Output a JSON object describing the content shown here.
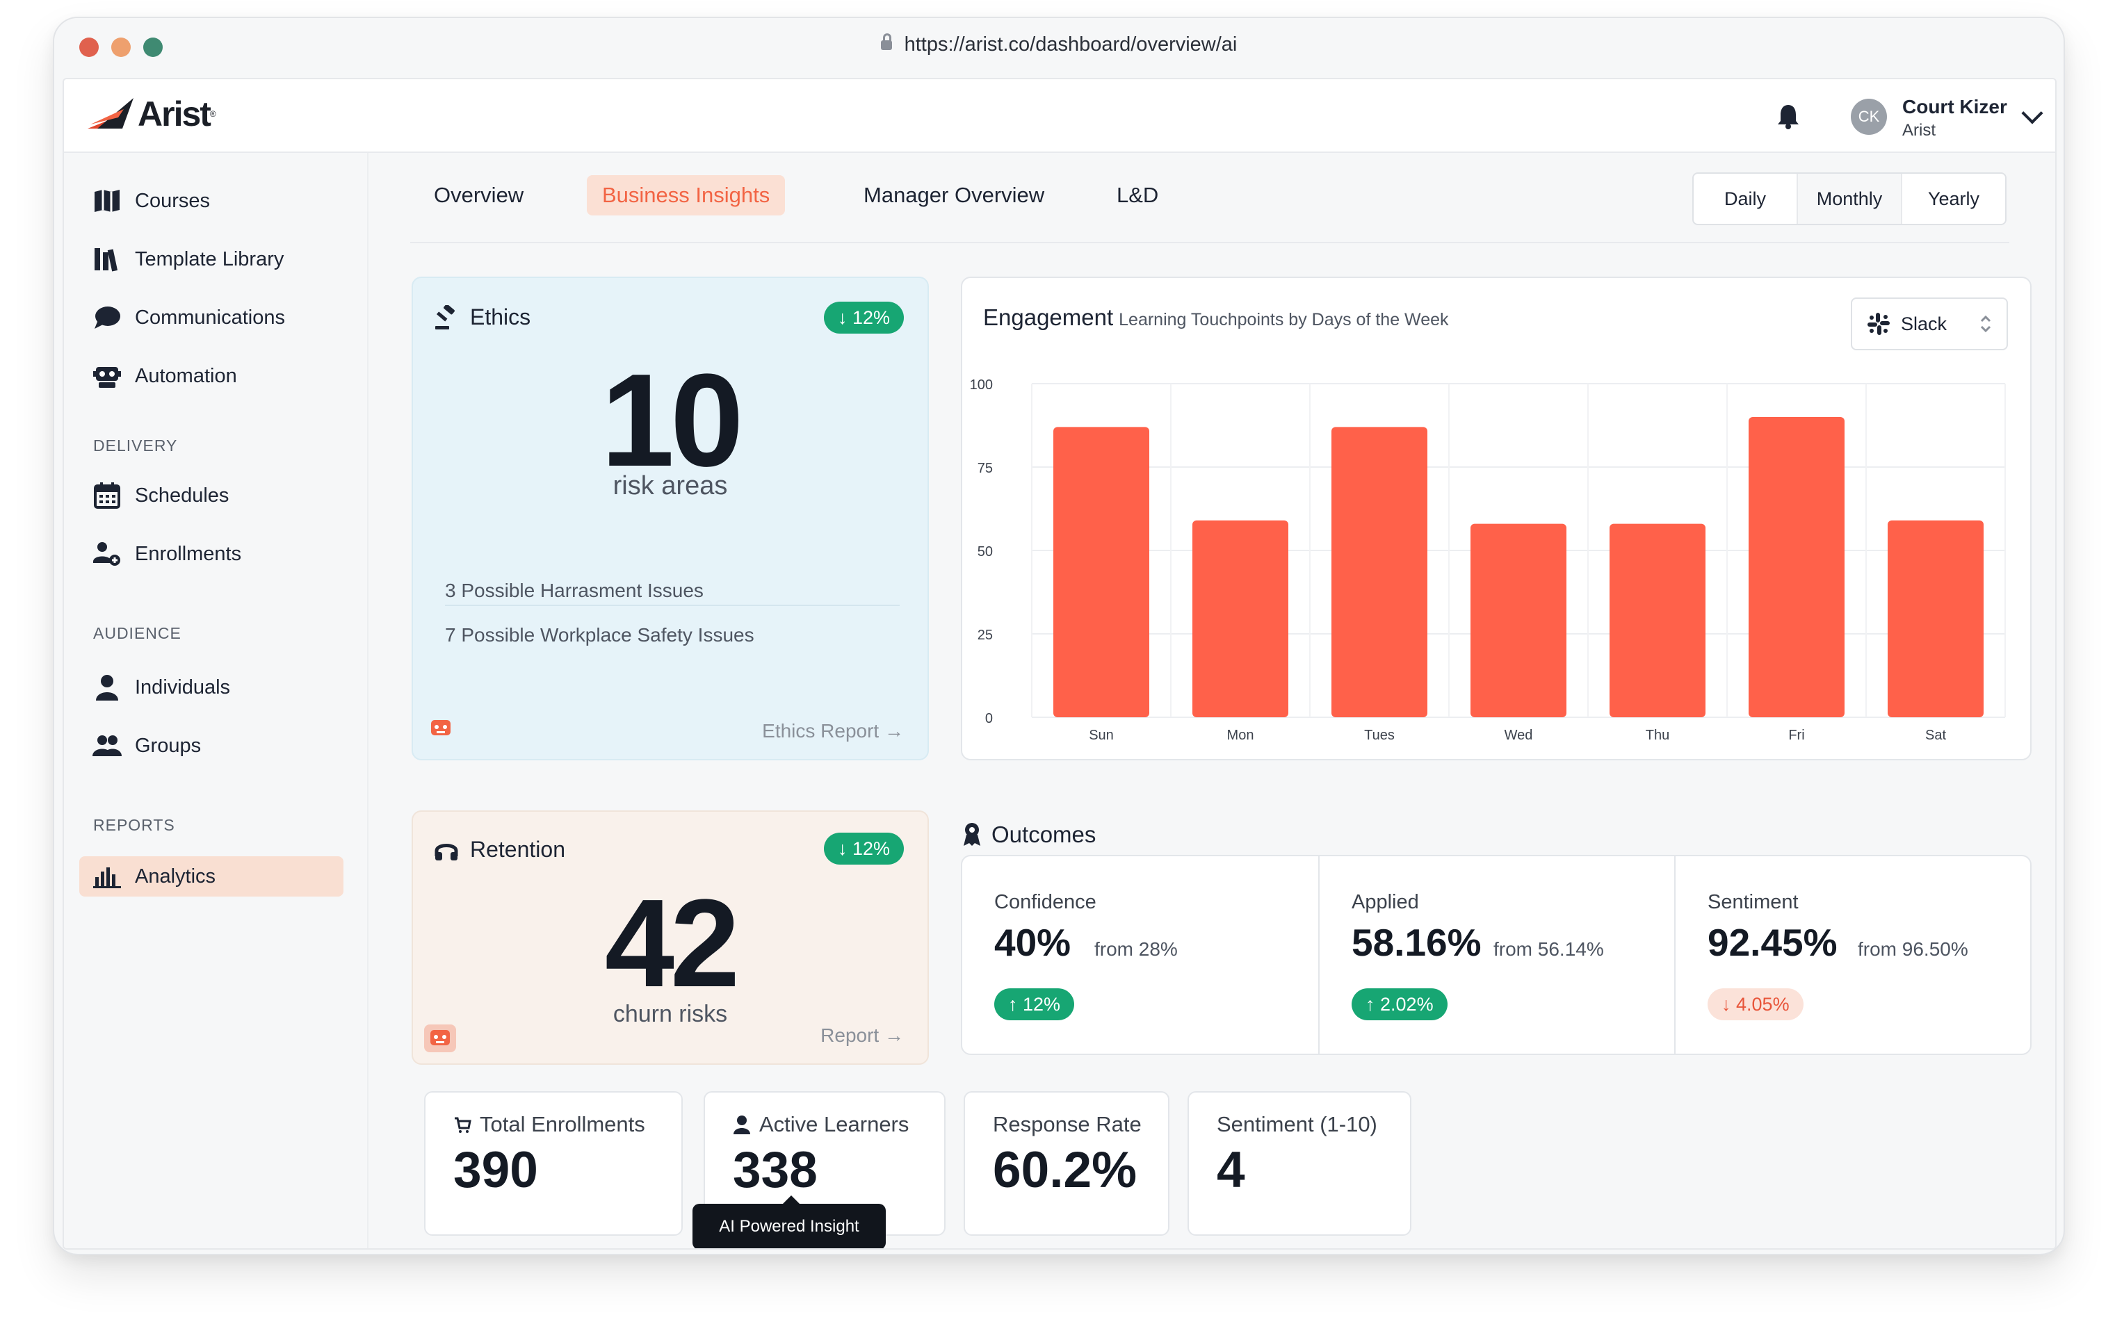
{
  "browser": {
    "url": "https://arist.co/dashboard/overview/ai"
  },
  "header": {
    "brand": "Arist",
    "user": {
      "initials": "CK",
      "name": "Court Kizer",
      "org": "Arist"
    }
  },
  "sidebar": {
    "items": [
      {
        "label": "Courses",
        "icon": "map-book-icon"
      },
      {
        "label": "Template Library",
        "icon": "library-icon"
      },
      {
        "label": "Communications",
        "icon": "chat-bubble-icon"
      },
      {
        "label": "Automation",
        "icon": "robot-icon"
      }
    ],
    "sections": [
      {
        "heading": "DELIVERY",
        "items": [
          {
            "label": "Schedules",
            "icon": "calendar-icon"
          },
          {
            "label": "Enrollments",
            "icon": "user-add-icon"
          }
        ]
      },
      {
        "heading": "AUDIENCE",
        "items": [
          {
            "label": "Individuals",
            "icon": "user-icon"
          },
          {
            "label": "Groups",
            "icon": "users-icon"
          }
        ]
      },
      {
        "heading": "REPORTS",
        "items": [
          {
            "label": "Analytics",
            "icon": "bar-chart-icon",
            "active": true
          }
        ]
      }
    ]
  },
  "tabs": [
    "Overview",
    "Business Insights",
    "Manager Overview",
    "L&D"
  ],
  "active_tab": "Business Insights",
  "period": {
    "options": [
      "Daily",
      "Monthly",
      "Yearly"
    ],
    "selected": "Monthly"
  },
  "ethics": {
    "title": "Ethics",
    "badge": "12%",
    "value": "10",
    "unit": "risk areas",
    "issues": [
      "3 Possible Harrasment Issues",
      "7 Possible Workplace Safety Issues"
    ],
    "link": "Ethics Report"
  },
  "engagement": {
    "title": "Engagement",
    "subtitle": "Learning Touchpoints by Days of the Week",
    "source": "Slack",
    "bar_color": "#ff614a"
  },
  "chart_data": {
    "type": "bar",
    "title": "Engagement",
    "subtitle": "Learning Touchpoints by Days of the Week",
    "categories": [
      "Sun",
      "Mon",
      "Tues",
      "Wed",
      "Thu",
      "Fri",
      "Sat"
    ],
    "values": [
      87,
      59,
      87,
      58,
      58,
      90,
      59
    ],
    "ylim": [
      0,
      100
    ],
    "yticks": [
      0,
      25,
      50,
      75,
      100
    ],
    "grid": true,
    "legend": "none"
  },
  "retention": {
    "title": "Retention",
    "badge": "12%",
    "value": "42",
    "unit": "churn risks",
    "link": "Report"
  },
  "tooltip": "AI Powered  Insight",
  "outcomes": {
    "title": "Outcomes",
    "items": [
      {
        "label": "Confidence",
        "value": "40%",
        "from": "from 28%",
        "change": "12%",
        "direction": "up"
      },
      {
        "label": "Applied",
        "value": "58.16%",
        "from": "from 56.14%",
        "change": "2.02%",
        "direction": "up"
      },
      {
        "label": "Sentiment",
        "value": "92.45%",
        "from": "from 96.50%",
        "change": "4.05%",
        "direction": "down"
      }
    ]
  },
  "stats": [
    {
      "label": "Total Enrollments",
      "value": "390"
    },
    {
      "label": "Active Learners",
      "value": "338"
    },
    {
      "label": "Response Rate",
      "value": "60.2%"
    },
    {
      "label": "Sentiment (1-10)",
      "value": "4"
    }
  ],
  "colors": {
    "accent": "#f26444",
    "success": "#17a673",
    "ethics_bg": "#e6f3f9",
    "retention_bg": "#f9f1eb"
  }
}
